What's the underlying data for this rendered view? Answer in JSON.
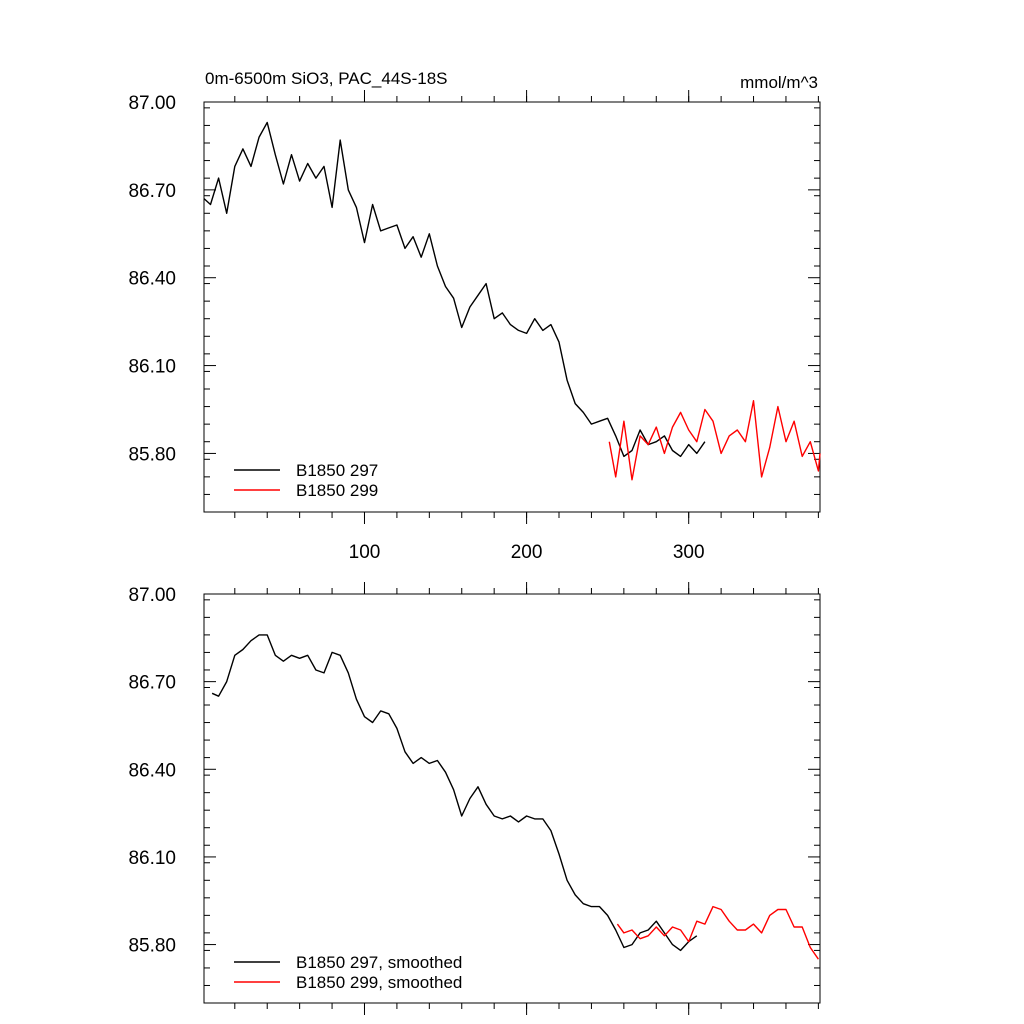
{
  "title_left": "0m-6500m SiO3, PAC_44S-18S",
  "title_right": "mmol/m^3",
  "colors": {
    "series_297": "#000000",
    "series_299": "#ff0000",
    "axis": "#000000"
  },
  "chart_data": [
    {
      "type": "line",
      "panel": "top",
      "xlim": [
        1,
        381
      ],
      "ylim": [
        85.6,
        87.0
      ],
      "x_ticks": [
        100,
        200,
        300
      ],
      "y_ticks": [
        "87.00",
        "86.70",
        "86.40",
        "86.10",
        "85.80"
      ],
      "x_tick_labels_shown": true,
      "legend_position": "bottom-left",
      "series": [
        {
          "name": "B1850 297",
          "color": "#000000",
          "x": [
            1,
            5,
            10,
            15,
            20,
            25,
            30,
            35,
            40,
            45,
            50,
            55,
            60,
            65,
            70,
            75,
            80,
            85,
            90,
            95,
            100,
            105,
            110,
            115,
            120,
            125,
            130,
            135,
            140,
            145,
            150,
            155,
            160,
            165,
            170,
            175,
            180,
            185,
            190,
            195,
            200,
            205,
            210,
            215,
            220,
            225,
            230,
            235,
            240,
            245,
            250,
            255,
            260,
            265,
            270,
            275,
            280,
            285,
            290,
            295,
            300,
            305,
            310
          ],
          "y": [
            86.67,
            86.65,
            86.74,
            86.62,
            86.78,
            86.84,
            86.78,
            86.88,
            86.93,
            86.82,
            86.72,
            86.82,
            86.73,
            86.79,
            86.74,
            86.78,
            86.64,
            86.87,
            86.7,
            86.64,
            86.52,
            86.65,
            86.56,
            86.57,
            86.58,
            86.5,
            86.54,
            86.47,
            86.55,
            86.44,
            86.37,
            86.33,
            86.23,
            86.3,
            86.34,
            86.38,
            86.26,
            86.28,
            86.24,
            86.22,
            86.21,
            86.26,
            86.22,
            86.24,
            86.18,
            86.05,
            85.97,
            85.94,
            85.9,
            85.91,
            85.92,
            85.86,
            85.79,
            85.81,
            85.88,
            85.83,
            85.84,
            85.86,
            85.81,
            85.79,
            85.83,
            85.8,
            85.84
          ]
        },
        {
          "name": "B1850 299",
          "color": "#ff0000",
          "x": [
            251,
            255,
            260,
            265,
            270,
            275,
            280,
            285,
            290,
            295,
            300,
            305,
            310,
            315,
            320,
            325,
            330,
            335,
            340,
            345,
            350,
            355,
            360,
            365,
            370,
            375,
            380,
            381
          ],
          "y": [
            85.84,
            85.72,
            85.91,
            85.71,
            85.86,
            85.83,
            85.89,
            85.8,
            85.89,
            85.94,
            85.88,
            85.84,
            85.95,
            85.91,
            85.8,
            85.86,
            85.88,
            85.84,
            85.98,
            85.72,
            85.82,
            85.96,
            85.84,
            85.91,
            85.79,
            85.84,
            85.74,
            85.8
          ]
        }
      ]
    },
    {
      "type": "line",
      "panel": "bottom",
      "xlim": [
        1,
        381
      ],
      "ylim": [
        85.6,
        87.0
      ],
      "x_ticks": [
        100,
        200,
        300
      ],
      "y_ticks": [
        "87.00",
        "86.70",
        "86.40",
        "86.10",
        "85.80"
      ],
      "x_tick_labels_shown": false,
      "legend_position": "bottom-left",
      "series": [
        {
          "name": "B1850 297, smoothed",
          "color": "#000000",
          "x": [
            6,
            10,
            15,
            20,
            25,
            30,
            35,
            40,
            45,
            50,
            55,
            60,
            65,
            70,
            75,
            80,
            85,
            90,
            95,
            100,
            105,
            110,
            115,
            120,
            125,
            130,
            135,
            140,
            145,
            150,
            155,
            160,
            165,
            170,
            175,
            180,
            185,
            190,
            195,
            200,
            205,
            210,
            215,
            220,
            225,
            230,
            235,
            240,
            245,
            250,
            255,
            260,
            265,
            270,
            275,
            280,
            285,
            290,
            295,
            300,
            305
          ],
          "y": [
            86.66,
            86.65,
            86.7,
            86.79,
            86.81,
            86.84,
            86.86,
            86.86,
            86.79,
            86.77,
            86.79,
            86.78,
            86.79,
            86.74,
            86.73,
            86.8,
            86.79,
            86.73,
            86.64,
            86.58,
            86.56,
            86.6,
            86.59,
            86.54,
            86.46,
            86.42,
            86.44,
            86.42,
            86.43,
            86.39,
            86.33,
            86.24,
            86.3,
            86.34,
            86.28,
            86.24,
            86.23,
            86.24,
            86.22,
            86.24,
            86.23,
            86.23,
            86.19,
            86.11,
            86.02,
            85.97,
            85.94,
            85.93,
            85.93,
            85.9,
            85.85,
            85.79,
            85.8,
            85.84,
            85.85,
            85.88,
            85.84,
            85.8,
            85.78,
            85.81,
            85.83
          ]
        },
        {
          "name": "B1850 299, smoothed",
          "color": "#ff0000",
          "x": [
            256,
            260,
            265,
            270,
            275,
            280,
            285,
            290,
            295,
            300,
            305,
            310,
            315,
            320,
            325,
            330,
            335,
            340,
            345,
            350,
            355,
            360,
            365,
            370,
            375,
            380
          ],
          "y": [
            85.87,
            85.84,
            85.85,
            85.82,
            85.83,
            85.86,
            85.83,
            85.86,
            85.85,
            85.81,
            85.88,
            85.87,
            85.93,
            85.92,
            85.88,
            85.85,
            85.85,
            85.87,
            85.84,
            85.9,
            85.92,
            85.92,
            85.86,
            85.86,
            85.79,
            85.75
          ]
        }
      ]
    }
  ]
}
